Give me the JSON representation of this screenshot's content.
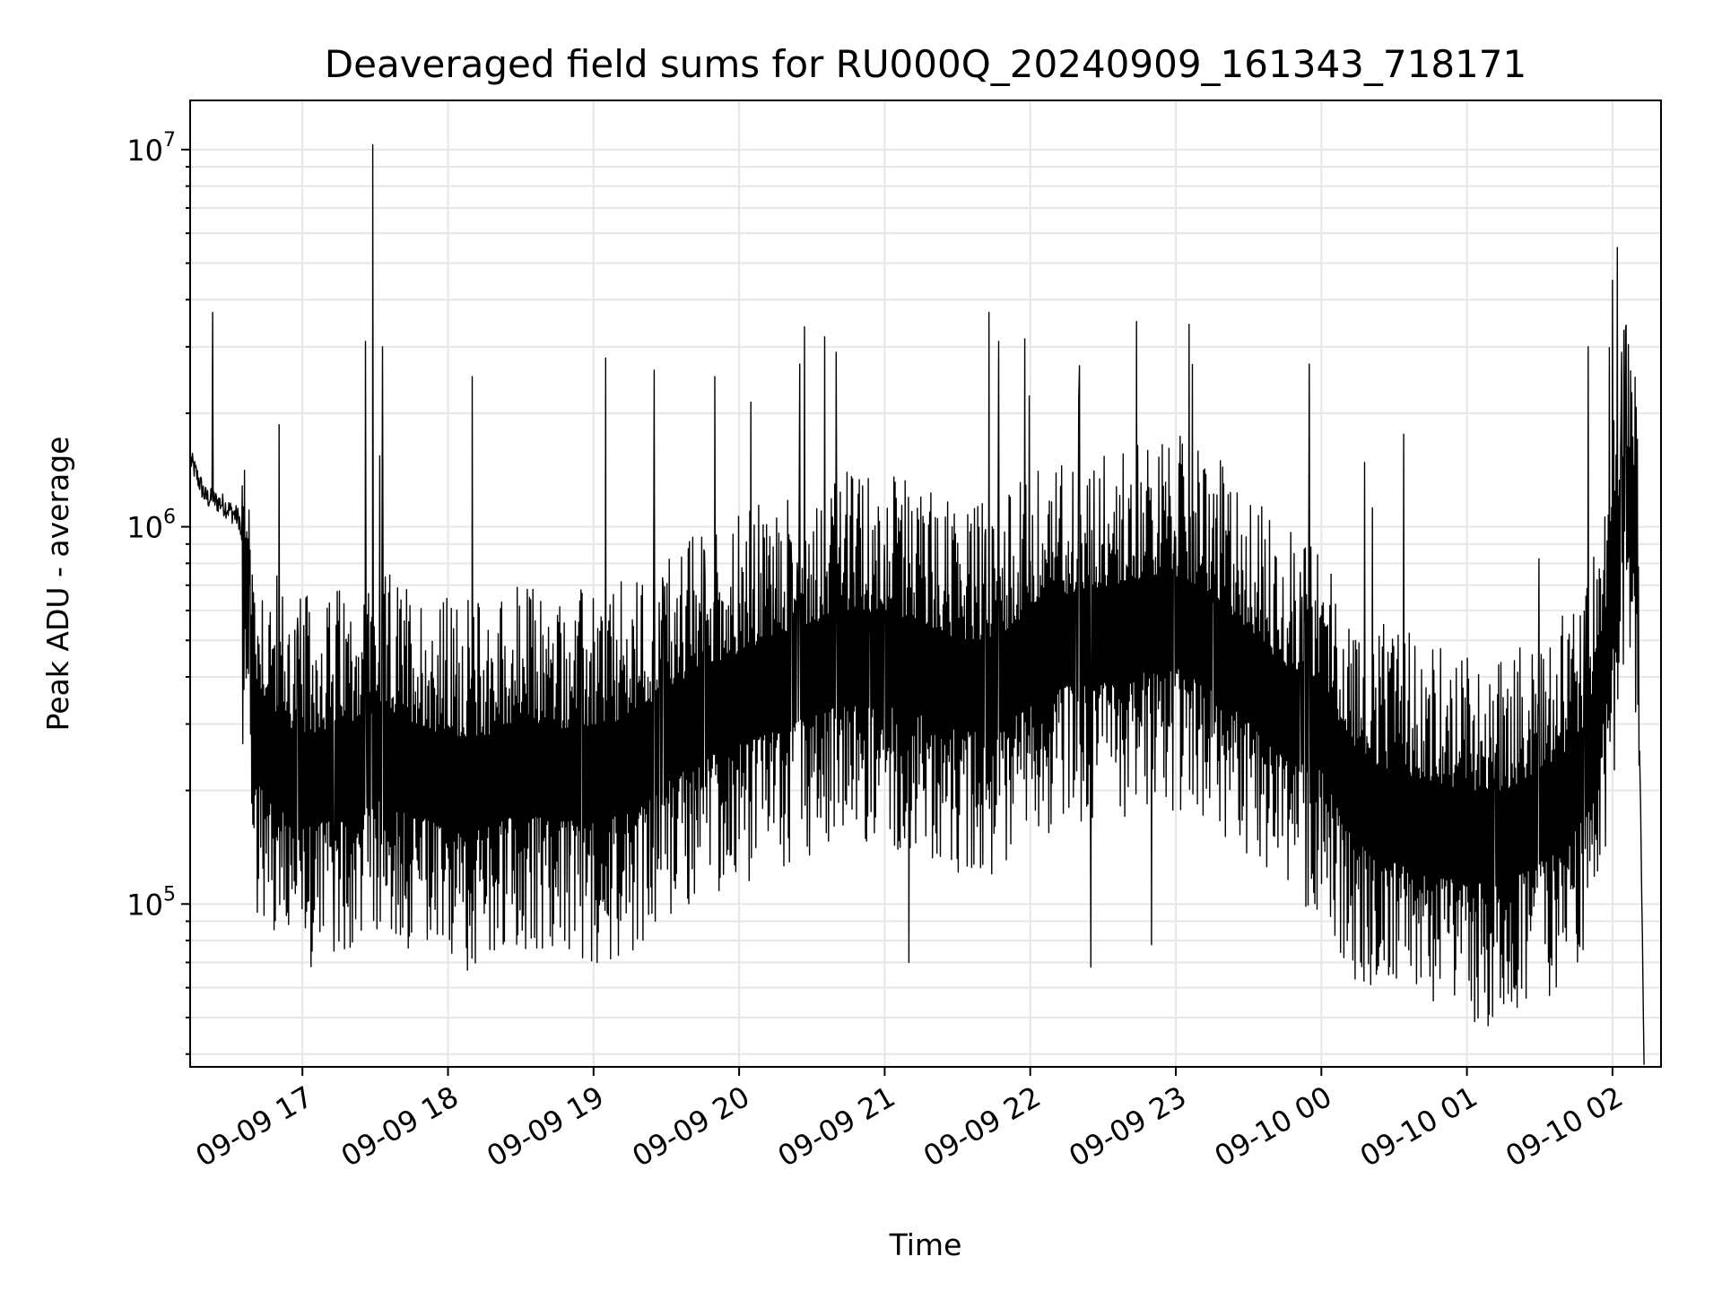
{
  "chart_data": {
    "type": "line",
    "title": "Deaveraged field sums for RU000Q_20240909_161343_718171",
    "xlabel": "Time",
    "ylabel": "Peak ADU - average",
    "yscale": "log",
    "grid": "on (major and minor)",
    "line_color": "#000000",
    "xlim": [
      "2024-09-09 16:13:43",
      "2024-09-10 02:20"
    ],
    "ylim": [
      37000,
      13500000
    ],
    "x_ticks": [
      {
        "value": "2024-09-09 17:00",
        "label": "09-09 17"
      },
      {
        "value": "2024-09-09 18:00",
        "label": "09-09 18"
      },
      {
        "value": "2024-09-09 19:00",
        "label": "09-09 19"
      },
      {
        "value": "2024-09-09 20:00",
        "label": "09-09 20"
      },
      {
        "value": "2024-09-09 21:00",
        "label": "09-09 21"
      },
      {
        "value": "2024-09-09 22:00",
        "label": "09-09 22"
      },
      {
        "value": "2024-09-09 23:00",
        "label": "09-09 23"
      },
      {
        "value": "2024-09-10 00:00",
        "label": "09-10 00"
      },
      {
        "value": "2024-09-10 01:00",
        "label": "09-10 01"
      },
      {
        "value": "2024-09-10 02:00",
        "label": "09-10 02"
      }
    ],
    "y_ticks": [
      {
        "value": 100000,
        "base": "10",
        "exp": "5"
      },
      {
        "value": 1000000,
        "base": "10",
        "exp": "6"
      },
      {
        "value": 10000000,
        "base": "10",
        "exp": "7"
      }
    ],
    "series": [
      {
        "x": [
          "2024-09-09 16:14",
          "2024-09-09 16:20",
          "2024-09-09 16:27",
          "2024-09-09 16:34",
          "2024-09-09 16:37",
          "2024-09-09 16:40",
          "2024-09-09 16:45",
          "2024-09-09 16:50",
          "2024-09-09 16:55",
          "2024-09-09 17:00",
          "2024-09-09 17:10",
          "2024-09-09 17:20",
          "2024-09-09 17:30",
          "2024-09-09 17:45",
          "2024-09-09 18:00",
          "2024-09-09 18:15",
          "2024-09-09 18:30",
          "2024-09-09 18:45",
          "2024-09-09 19:00",
          "2024-09-09 19:15",
          "2024-09-09 19:30",
          "2024-09-09 19:45",
          "2024-09-09 20:00",
          "2024-09-09 20:15",
          "2024-09-09 20:30",
          "2024-09-09 20:45",
          "2024-09-09 21:00",
          "2024-09-09 21:15",
          "2024-09-09 21:30",
          "2024-09-09 21:45",
          "2024-09-09 22:00",
          "2024-09-09 22:15",
          "2024-09-09 22:30",
          "2024-09-09 22:45",
          "2024-09-09 23:00",
          "2024-09-09 23:15",
          "2024-09-09 23:30",
          "2024-09-09 23:45",
          "2024-09-10 00:00",
          "2024-09-10 00:10",
          "2024-09-10 00:20",
          "2024-09-10 00:30",
          "2024-09-10 00:45",
          "2024-09-10 01:00",
          "2024-09-10 01:15",
          "2024-09-10 01:30",
          "2024-09-10 01:40",
          "2024-09-10 01:50",
          "2024-09-10 01:55",
          "2024-09-10 02:00",
          "2024-09-10 02:05",
          "2024-09-10 02:10",
          "2024-09-10 02:13"
        ],
        "y": [
          1500000,
          1200000,
          1150000,
          1050000,
          650000,
          300000,
          260000,
          240000,
          220000,
          210000,
          220000,
          230000,
          250000,
          230000,
          210000,
          210000,
          230000,
          220000,
          220000,
          230000,
          280000,
          320000,
          350000,
          380000,
          420000,
          450000,
          450000,
          420000,
          380000,
          380000,
          450000,
          500000,
          520000,
          550000,
          560000,
          500000,
          400000,
          320000,
          300000,
          210000,
          180000,
          170000,
          160000,
          150000,
          150000,
          170000,
          190000,
          230000,
          350000,
          600000,
          1300000,
          900000,
          40000
        ],
        "peaks": [
          {
            "x": "2024-09-09 17:29",
            "y": 10300000
          },
          {
            "x": "2024-09-09 16:23",
            "y": 3700000
          },
          {
            "x": "2024-09-09 17:26",
            "y": 3100000
          },
          {
            "x": "2024-09-09 17:33",
            "y": 3000000
          },
          {
            "x": "2024-09-09 18:10",
            "y": 2500000
          },
          {
            "x": "2024-09-09 19:05",
            "y": 2800000
          },
          {
            "x": "2024-09-09 19:25",
            "y": 2600000
          },
          {
            "x": "2024-09-09 19:50",
            "y": 2500000
          },
          {
            "x": "2024-09-09 20:25",
            "y": 2700000
          },
          {
            "x": "2024-09-09 20:40",
            "y": 2900000
          },
          {
            "x": "2024-09-09 21:43",
            "y": 3700000
          },
          {
            "x": "2024-09-09 21:47",
            "y": 3100000
          },
          {
            "x": "2024-09-09 22:20",
            "y": 2200000
          },
          {
            "x": "2024-09-09 23:55",
            "y": 2700000
          },
          {
            "x": "2024-09-10 01:50",
            "y": 3000000
          },
          {
            "x": "2024-09-10 02:00",
            "y": 4500000
          },
          {
            "x": "2024-09-10 02:02",
            "y": 5500000
          }
        ],
        "troughs": [
          {
            "x": "2024-09-09 17:13",
            "y": 75000
          },
          {
            "x": "2024-09-09 21:10",
            "y": 70000
          },
          {
            "x": "2024-09-09 22:25",
            "y": 68000
          },
          {
            "x": "2024-09-09 22:50",
            "y": 78000
          },
          {
            "x": "2024-09-10 00:23",
            "y": 67000
          },
          {
            "x": "2024-09-10 02:14",
            "y": 38000
          }
        ]
      }
    ]
  }
}
